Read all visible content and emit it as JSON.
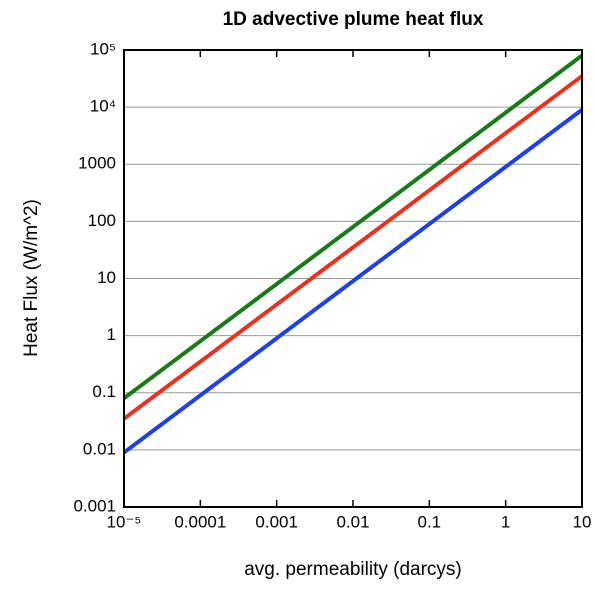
{
  "chart_data": {
    "type": "line",
    "title": "1D advective plume heat flux",
    "x_label": "avg. permeability (darcys)",
    "y_label": "Heat Flux (W/m^2)",
    "log_x": true,
    "log_y": true,
    "grid": "y",
    "x": [
      1e-05,
      10
    ],
    "series": [
      {
        "color": "#1a7a1a",
        "values": [
          0.08,
          80000
        ]
      },
      {
        "color": "#e8321e",
        "values": [
          0.035,
          35000
        ]
      },
      {
        "color": "#2040e0",
        "values": [
          0.009,
          9000
        ]
      }
    ],
    "xlim": [
      1e-05,
      10
    ],
    "xticks": [
      {
        "value": 1e-05,
        "label": "10⁻⁵"
      },
      0.0001,
      0.001,
      0.01,
      0.1,
      1,
      10
    ],
    "ylim": [
      0.001,
      100000
    ],
    "yticks": [
      0.001,
      0.01,
      0.1,
      1,
      10,
      100,
      1000,
      {
        "value": 10000,
        "label": "10⁴"
      },
      {
        "value": 100000,
        "label": "10⁵"
      }
    ]
  }
}
